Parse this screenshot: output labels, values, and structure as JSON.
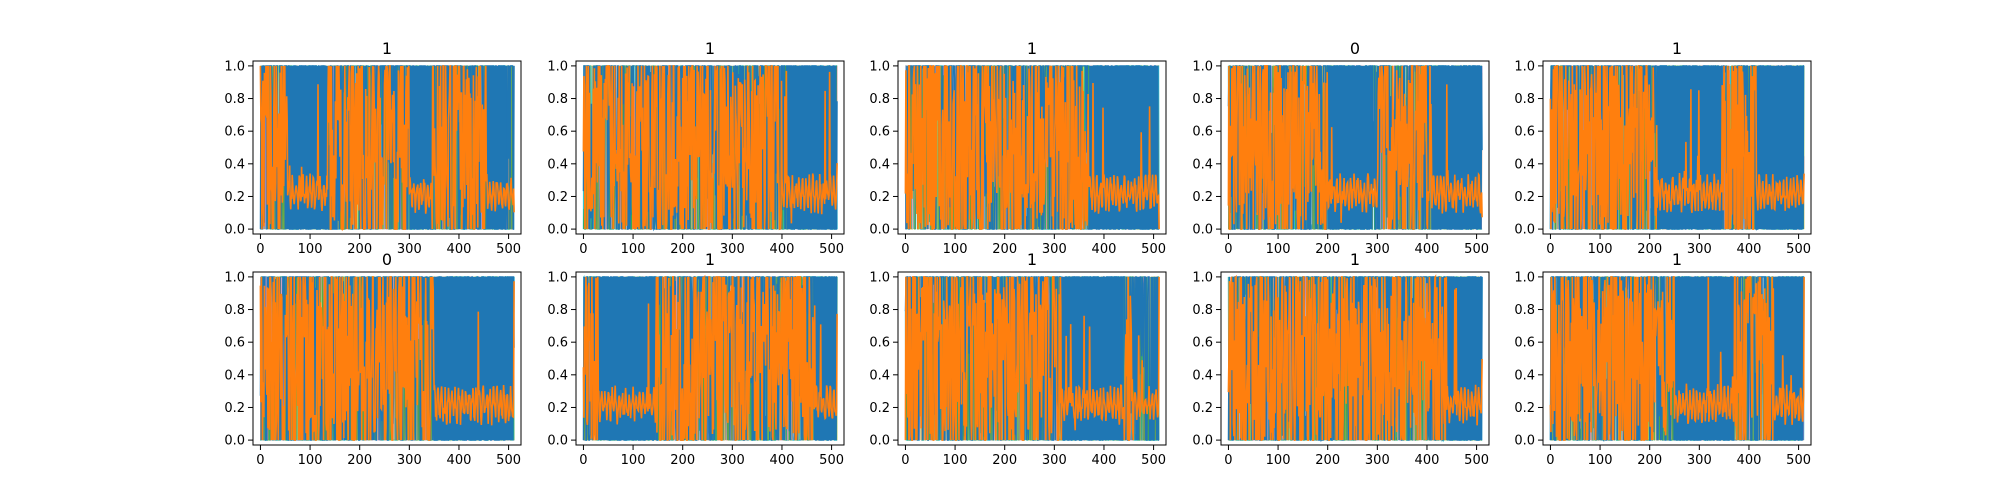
{
  "chart_data": {
    "type": "line",
    "layout": "2x5 grid of subplots",
    "xlim": [
      -15,
      525
    ],
    "ylim": [
      -0.03,
      1.03
    ],
    "xticks": [
      0,
      100,
      200,
      300,
      400,
      500
    ],
    "yticks": [
      0.0,
      0.2,
      0.4,
      0.6,
      0.8,
      1.0
    ],
    "xtick_labels": [
      "0",
      "100",
      "200",
      "300",
      "400",
      "500"
    ],
    "ytick_labels": [
      "0.0",
      "0.2",
      "0.4",
      "0.6",
      "0.8",
      "1.0"
    ],
    "grid": false,
    "legend": "none",
    "series_colors": [
      "#1f77b4",
      "#ff7f0e",
      "#17becf",
      "#bcbd22",
      "#e377c2",
      "#2ca02c"
    ],
    "panels": [
      {
        "title": "1",
        "blue_block_ranges": [
          [
            55,
            135
          ],
          [
            300,
            345
          ],
          [
            455,
            495
          ]
        ],
        "orange_low_ranges": [
          [
            55,
            135
          ],
          [
            300,
            345
          ],
          [
            455,
            510
          ]
        ]
      },
      {
        "title": "1",
        "blue_block_ranges": [
          [
            410,
            510
          ]
        ],
        "orange_low_ranges": [
          [
            400,
            510
          ]
        ]
      },
      {
        "title": "1",
        "blue_block_ranges": [
          [
            370,
            510
          ]
        ],
        "orange_low_ranges": [
          [
            370,
            510
          ]
        ]
      },
      {
        "title": "0",
        "blue_block_ranges": [
          [
            200,
            290
          ],
          [
            410,
            510
          ]
        ],
        "orange_low_ranges": [
          [
            200,
            300
          ],
          [
            410,
            510
          ]
        ]
      },
      {
        "title": "1",
        "blue_block_ranges": [
          [
            215,
            345
          ],
          [
            415,
            510
          ]
        ],
        "orange_low_ranges": [
          [
            215,
            345
          ],
          [
            415,
            510
          ]
        ]
      },
      {
        "title": "0",
        "blue_block_ranges": [
          [
            350,
            510
          ]
        ],
        "orange_low_ranges": [
          [
            350,
            510
          ]
        ]
      },
      {
        "title": "1",
        "blue_block_ranges": [
          [
            30,
            145
          ],
          [
            465,
            510
          ]
        ],
        "orange_low_ranges": [
          [
            30,
            145
          ],
          [
            465,
            510
          ]
        ]
      },
      {
        "title": "1",
        "blue_block_ranges": [
          [
            315,
            440
          ]
        ],
        "orange_low_ranges": [
          [
            315,
            440
          ],
          [
            460,
            510
          ]
        ]
      },
      {
        "title": "1",
        "blue_block_ranges": [
          [
            440,
            510
          ]
        ],
        "orange_low_ranges": [
          [
            440,
            510
          ]
        ]
      },
      {
        "title": "1",
        "blue_block_ranges": [
          [
            250,
            370
          ],
          [
            450,
            510
          ]
        ],
        "orange_low_ranges": [
          [
            250,
            370
          ],
          [
            450,
            510
          ]
        ]
      }
    ]
  }
}
